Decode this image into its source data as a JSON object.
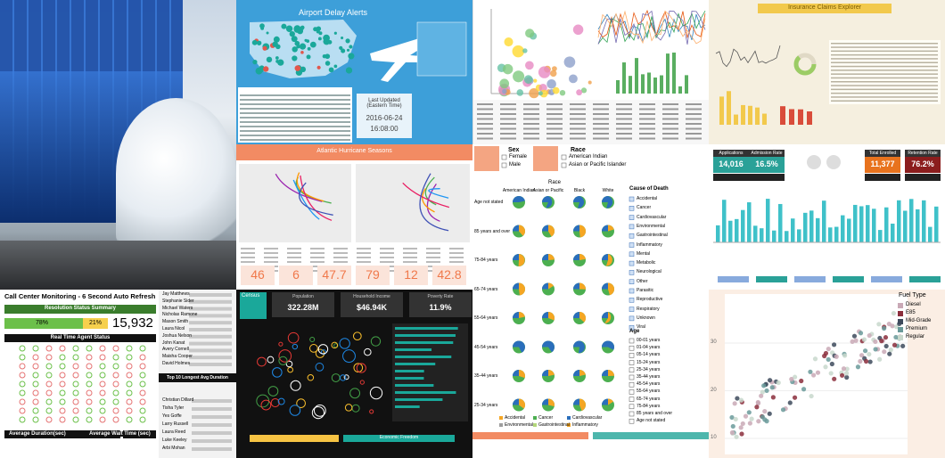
{
  "airport": {
    "title": "Airport Delay Alerts",
    "updated_label": "Last Updated (Eastern Time)",
    "updated_date": "2016-06-24",
    "updated_time": "16:08:00"
  },
  "insurance": {
    "title": "Insurance Claims Explorer"
  },
  "hurricane": {
    "title": "Atlantic Hurricane Seasons",
    "stats": [
      46,
      6,
      47.7,
      79,
      12,
      42.8
    ]
  },
  "mortality": {
    "sex_title": "Sex",
    "sex_options": [
      "Female",
      "Male"
    ],
    "race_title": "Race",
    "race_options": [
      "American Indian",
      "Asian or Pacific Islander"
    ],
    "columns": [
      "American Indian",
      "Asian or Pacific",
      "Black",
      "White"
    ],
    "rows": [
      "Age not stated",
      "85 years and over",
      "75-84 years",
      "65-74 years",
      "55-64 years",
      "45-54 years",
      "35-44 years",
      "25-34 years"
    ],
    "cause_title": "Cause of Death",
    "causes": [
      "Accidental",
      "Cancer",
      "Cardiovascular",
      "Environmental",
      "Gastrointestinal",
      "Inflammatory",
      "Mental",
      "Metabolic",
      "Neurological",
      "Other",
      "Parasitic",
      "Reproductive",
      "Respiratory",
      "Unknown",
      "Viral"
    ],
    "age_title": "Age",
    "ages": [
      "00-01 years",
      "01-04 years",
      "05-14 years",
      "15-24 years",
      "25-34 years",
      "35-44 years",
      "45-54 years",
      "55-64 years",
      "65-74 years",
      "75-84 years",
      "85 years and over",
      "Age not stated"
    ],
    "legend": [
      "Accidental",
      "Cancer",
      "Cardiovascular",
      "Environmental",
      "Gastrointestinal",
      "Inflammatory"
    ]
  },
  "admissions": {
    "kpis": [
      {
        "label": "Applications",
        "value": "14,016"
      },
      {
        "label": "Admission Rate",
        "value": "16.5%"
      },
      {
        "label": "Total Enrolled",
        "value": "11,377"
      },
      {
        "label": "Retention Rate",
        "value": "76.2%"
      }
    ]
  },
  "call_center": {
    "title": "Call Center Monitoring - 6 Second Auto Refresh",
    "summary_title": "Resolution Status Summary",
    "resolved": "78%",
    "pending": "21%",
    "total": "15,932",
    "agent_title": "Real Time Agent Status",
    "duration_title": "Average Duration(sec)",
    "wait_title": "Average Wait Time (sec)",
    "agents": [
      "Jay Matthews",
      "Stephanie Sider",
      "Michael Waters",
      "Nicholas Ramone",
      "Mason Smith",
      "Laura Nicol",
      "Joshua Nelson",
      "John Kanat",
      "Avery Cornell",
      "Maisha Cooper",
      "David Holmes"
    ],
    "longest_title": "Top 10 Longest Avg Duration",
    "longest": [
      "Christian Dillard",
      "Tisha Tyler",
      "Yes Goffe",
      "Larry Russell",
      "Laura Reed",
      "Luke Keeley",
      "Arbi Mohan"
    ]
  },
  "census": {
    "title": "Census",
    "kpis": [
      {
        "label": "Population",
        "value": "322.28M"
      },
      {
        "label": "Household Income",
        "value": "$46.94K"
      },
      {
        "label": "Poverty Rate",
        "value": "11.9%"
      }
    ],
    "footer": "Economic Freedom"
  },
  "fuel": {
    "legend_title": "Fuel Type",
    "legend": [
      "Diesel",
      "E85",
      "Mid-Grade",
      "Premium",
      "Regular"
    ],
    "colors": [
      "#c9a9b6",
      "#8b2e3c",
      "#3d4a5c",
      "#6a9a9a",
      "#c8d8cc"
    ],
    "yticks": [
      30,
      20,
      10
    ]
  }
}
